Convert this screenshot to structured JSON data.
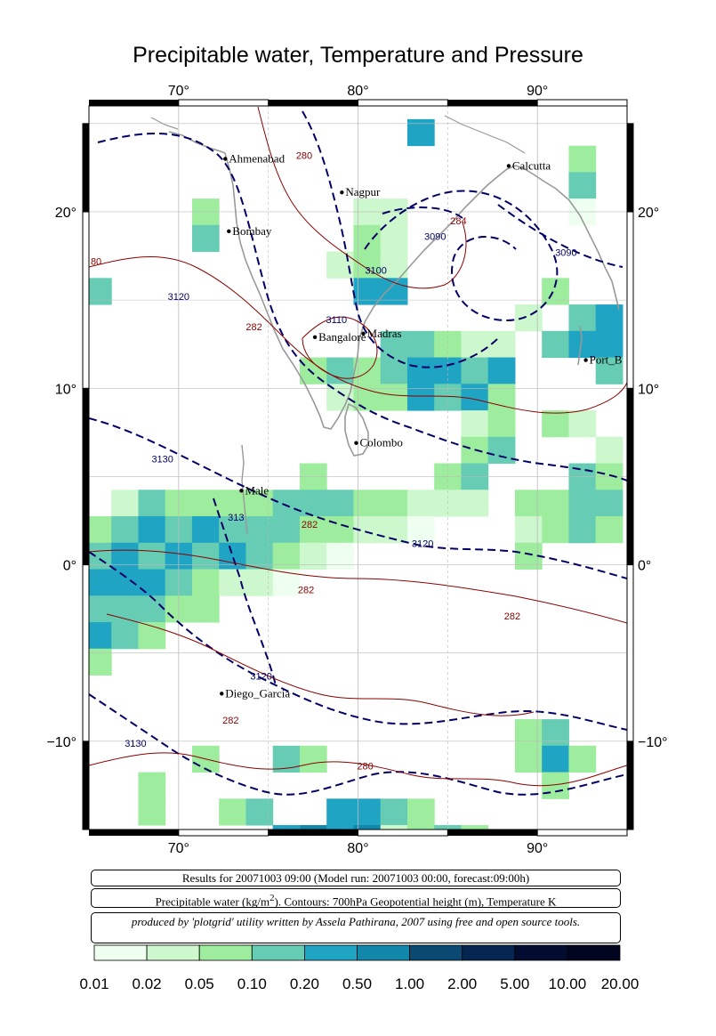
{
  "title": "Precipitable water, Temperature and Pressure",
  "map": {
    "lon_range": [
      65,
      95
    ],
    "lat_range": [
      -15,
      26
    ],
    "lon_ticks": [
      {
        "value": 70,
        "label": "70°"
      },
      {
        "value": 80,
        "label": "80°"
      },
      {
        "value": 90,
        "label": "90°"
      }
    ],
    "lat_ticks": [
      {
        "value": 20,
        "label": "20°"
      },
      {
        "value": 10,
        "label": "10°"
      },
      {
        "value": 0,
        "label": "0°"
      },
      {
        "value": -10,
        "label": "−10°"
      }
    ],
    "cities": [
      {
        "name": "Ahmenabad",
        "lon": 72.6,
        "lat": 23.0
      },
      {
        "name": "Nagpur",
        "lon": 79.1,
        "lat": 21.1
      },
      {
        "name": "Calcutta",
        "lon": 88.4,
        "lat": 22.6
      },
      {
        "name": "Bombay",
        "lon": 72.8,
        "lat": 18.9
      },
      {
        "name": "Bangalore",
        "lon": 77.6,
        "lat": 12.9
      },
      {
        "name": "Madras",
        "lon": 80.3,
        "lat": 13.1
      },
      {
        "name": "Port_B",
        "lon": 92.7,
        "lat": 11.6
      },
      {
        "name": "Colombo",
        "lon": 79.9,
        "lat": 6.9
      },
      {
        "name": "Male",
        "lon": 73.5,
        "lat": 4.2
      },
      {
        "name": "Diego_Garcia",
        "lon": 72.4,
        "lat": -7.3
      }
    ],
    "contour_labels": [
      {
        "text": "280",
        "lon": 77.0,
        "lat": 23.0,
        "color": "#8b0000"
      },
      {
        "text": "284",
        "lon": 85.6,
        "lat": 19.3,
        "color": "#8b0000"
      },
      {
        "text": "3090",
        "lon": 84.3,
        "lat": 18.4,
        "color": "#000066"
      },
      {
        "text": "3090",
        "lon": 91.6,
        "lat": 17.5,
        "color": "#000066"
      },
      {
        "text": "3100",
        "lon": 81.0,
        "lat": 16.5,
        "color": "#000066"
      },
      {
        "text": "3110",
        "lon": 78.8,
        "lat": 13.7,
        "color": "#000066"
      },
      {
        "text": "3120",
        "lon": 70.0,
        "lat": 15.0,
        "color": "#000066"
      },
      {
        "text": "282",
        "lon": 74.2,
        "lat": 13.3,
        "color": "#8b0000"
      },
      {
        "text": "80",
        "lon": 65.4,
        "lat": 17.0,
        "color": "#8b0000"
      },
      {
        "text": "3130",
        "lon": 69.1,
        "lat": 5.8,
        "color": "#000066"
      },
      {
        "text": "313",
        "lon": 73.2,
        "lat": 2.5,
        "color": "#000066"
      },
      {
        "text": "282",
        "lon": 77.3,
        "lat": 2.1,
        "color": "#8b0000"
      },
      {
        "text": "3120",
        "lon": 83.6,
        "lat": 1.0,
        "color": "#000066"
      },
      {
        "text": "282",
        "lon": 77.1,
        "lat": -1.6,
        "color": "#8b0000"
      },
      {
        "text": "282",
        "lon": 88.6,
        "lat": -3.1,
        "color": "#8b0000"
      },
      {
        "text": "3120",
        "lon": 74.6,
        "lat": -6.5,
        "color": "#000066"
      },
      {
        "text": "282",
        "lon": 72.9,
        "lat": -9.0,
        "color": "#8b0000"
      },
      {
        "text": "3130",
        "lon": 67.6,
        "lat": -10.3,
        "color": "#000066"
      },
      {
        "text": "280",
        "lon": 80.4,
        "lat": -11.6,
        "color": "#8b0000"
      }
    ]
  },
  "info": {
    "results": "Results for 20071003 09:00 (Model run: 20071003 00:00, forecast:09:00h)",
    "contours_prefix": "Precipitable water (kg/m",
    "contours_sup": "2",
    "contours_suffix": ").  Contours: 700hPa Geopotential height (m), Temperature K",
    "credits": "produced by 'plotgrid' utility written by Assela Pathirana, 2007 using free and open source tools."
  },
  "legend": {
    "labels": [
      "0.01",
      "0.02",
      "0.05",
      "0.10",
      "0.20",
      "0.50",
      "1.00",
      "2.00",
      "5.00",
      "10.00",
      "20.00"
    ],
    "colors": [
      "#eefff0",
      "#cdf7cd",
      "#9eed9e",
      "#66ccb3",
      "#20a4c4",
      "#1187aa",
      "#0a4a72",
      "#052650",
      "#020c30",
      "#01041e",
      "#00000a"
    ]
  },
  "chart_data": {
    "type": "heatmap",
    "title": "Precipitable water, Temperature and Pressure",
    "xlabel": "",
    "ylabel": "",
    "xlim": [
      65,
      95
    ],
    "ylim": [
      -15,
      26
    ],
    "grid_step_deg": 1.5,
    "cells": [
      {
        "lon": 83.5,
        "lat": 24.5,
        "level": 4
      },
      {
        "lon": 92.5,
        "lat": 23.0,
        "level": 2
      },
      {
        "lon": 92.5,
        "lat": 21.5,
        "level": 3
      },
      {
        "lon": 92.5,
        "lat": 20.0,
        "level": 0
      },
      {
        "lon": 71.5,
        "lat": 20.0,
        "level": 2
      },
      {
        "lon": 71.5,
        "lat": 18.5,
        "level": 3
      },
      {
        "lon": 80.5,
        "lat": 20.0,
        "level": 1
      },
      {
        "lon": 82.0,
        "lat": 20.0,
        "level": 1
      },
      {
        "lon": 80.5,
        "lat": 18.5,
        "level": 2
      },
      {
        "lon": 82.0,
        "lat": 18.5,
        "level": 1
      },
      {
        "lon": 79.0,
        "lat": 17.0,
        "level": 1
      },
      {
        "lon": 80.5,
        "lat": 17.0,
        "level": 2
      },
      {
        "lon": 82.0,
        "lat": 17.0,
        "level": 1
      },
      {
        "lon": 80.5,
        "lat": 15.5,
        "level": 4
      },
      {
        "lon": 82.0,
        "lat": 15.5,
        "level": 4
      },
      {
        "lon": 65.5,
        "lat": 15.5,
        "level": 3
      },
      {
        "lon": 89.5,
        "lat": 14.0,
        "level": 1
      },
      {
        "lon": 91.0,
        "lat": 15.5,
        "level": 2
      },
      {
        "lon": 92.5,
        "lat": 14.0,
        "level": 3
      },
      {
        "lon": 94.0,
        "lat": 14.0,
        "level": 4
      },
      {
        "lon": 91.0,
        "lat": 12.5,
        "level": 3
      },
      {
        "lon": 92.5,
        "lat": 12.5,
        "level": 4
      },
      {
        "lon": 94.0,
        "lat": 12.5,
        "level": 4
      },
      {
        "lon": 94.0,
        "lat": 11.0,
        "level": 3
      },
      {
        "lon": 82.0,
        "lat": 12.5,
        "level": 3
      },
      {
        "lon": 83.5,
        "lat": 12.5,
        "level": 3
      },
      {
        "lon": 85.0,
        "lat": 12.5,
        "level": 2
      },
      {
        "lon": 86.5,
        "lat": 12.5,
        "level": 1
      },
      {
        "lon": 88.0,
        "lat": 12.5,
        "level": 1
      },
      {
        "lon": 77.5,
        "lat": 11.0,
        "level": 2
      },
      {
        "lon": 79.0,
        "lat": 11.0,
        "level": 3
      },
      {
        "lon": 80.5,
        "lat": 11.0,
        "level": 2
      },
      {
        "lon": 82.0,
        "lat": 11.0,
        "level": 3
      },
      {
        "lon": 83.5,
        "lat": 11.0,
        "level": 4
      },
      {
        "lon": 85.0,
        "lat": 11.0,
        "level": 4
      },
      {
        "lon": 86.5,
        "lat": 11.0,
        "level": 3
      },
      {
        "lon": 88.0,
        "lat": 11.0,
        "level": 4
      },
      {
        "lon": 79.0,
        "lat": 9.5,
        "level": 1
      },
      {
        "lon": 80.5,
        "lat": 9.5,
        "level": 2
      },
      {
        "lon": 82.0,
        "lat": 9.5,
        "level": 2
      },
      {
        "lon": 83.5,
        "lat": 9.5,
        "level": 4
      },
      {
        "lon": 85.0,
        "lat": 9.5,
        "level": 3
      },
      {
        "lon": 86.5,
        "lat": 9.5,
        "level": 4
      },
      {
        "lon": 88.0,
        "lat": 9.5,
        "level": 2
      },
      {
        "lon": 86.5,
        "lat": 8.0,
        "level": 1
      },
      {
        "lon": 88.0,
        "lat": 8.0,
        "level": 2
      },
      {
        "lon": 91.0,
        "lat": 8.0,
        "level": 2
      },
      {
        "lon": 92.5,
        "lat": 8.0,
        "level": 1
      },
      {
        "lon": 86.5,
        "lat": 6.5,
        "level": 2
      },
      {
        "lon": 88.0,
        "lat": 6.5,
        "level": 3
      },
      {
        "lon": 94.0,
        "lat": 6.5,
        "level": 1
      },
      {
        "lon": 77.5,
        "lat": 5.0,
        "level": 2
      },
      {
        "lon": 85.0,
        "lat": 5.0,
        "level": 2
      },
      {
        "lon": 86.5,
        "lat": 5.0,
        "level": 3
      },
      {
        "lon": 92.5,
        "lat": 5.0,
        "level": 3
      },
      {
        "lon": 94.0,
        "lat": 5.0,
        "level": 2
      },
      {
        "lon": 67.0,
        "lat": 3.5,
        "level": 1
      },
      {
        "lon": 68.5,
        "lat": 3.5,
        "level": 3
      },
      {
        "lon": 70.0,
        "lat": 3.5,
        "level": 2
      },
      {
        "lon": 71.5,
        "lat": 3.5,
        "level": 2
      },
      {
        "lon": 73.0,
        "lat": 3.5,
        "level": 2
      },
      {
        "lon": 74.5,
        "lat": 3.5,
        "level": 2
      },
      {
        "lon": 76.0,
        "lat": 3.5,
        "level": 3
      },
      {
        "lon": 77.5,
        "lat": 3.5,
        "level": 3
      },
      {
        "lon": 79.0,
        "lat": 3.5,
        "level": 3
      },
      {
        "lon": 80.5,
        "lat": 3.5,
        "level": 2
      },
      {
        "lon": 82.0,
        "lat": 3.5,
        "level": 2
      },
      {
        "lon": 83.5,
        "lat": 3.5,
        "level": 1
      },
      {
        "lon": 85.0,
        "lat": 3.5,
        "level": 1
      },
      {
        "lon": 86.5,
        "lat": 3.5,
        "level": 1
      },
      {
        "lon": 89.5,
        "lat": 3.5,
        "level": 2
      },
      {
        "lon": 91.0,
        "lat": 3.5,
        "level": 2
      },
      {
        "lon": 92.5,
        "lat": 3.5,
        "level": 3
      },
      {
        "lon": 94.0,
        "lat": 3.5,
        "level": 3
      },
      {
        "lon": 65.5,
        "lat": 2.0,
        "level": 2
      },
      {
        "lon": 67.0,
        "lat": 2.0,
        "level": 3
      },
      {
        "lon": 68.5,
        "lat": 2.0,
        "level": 4
      },
      {
        "lon": 70.0,
        "lat": 2.0,
        "level": 3
      },
      {
        "lon": 71.5,
        "lat": 2.0,
        "level": 4
      },
      {
        "lon": 73.0,
        "lat": 2.0,
        "level": 3
      },
      {
        "lon": 74.5,
        "lat": 2.0,
        "level": 3
      },
      {
        "lon": 76.0,
        "lat": 2.0,
        "level": 3
      },
      {
        "lon": 77.5,
        "lat": 2.0,
        "level": 2
      },
      {
        "lon": 79.0,
        "lat": 2.0,
        "level": 2
      },
      {
        "lon": 80.5,
        "lat": 2.0,
        "level": 1
      },
      {
        "lon": 82.0,
        "lat": 2.0,
        "level": 1
      },
      {
        "lon": 83.5,
        "lat": 2.0,
        "level": 0
      },
      {
        "lon": 89.5,
        "lat": 2.0,
        "level": 1
      },
      {
        "lon": 91.0,
        "lat": 2.0,
        "level": 2
      },
      {
        "lon": 92.5,
        "lat": 2.0,
        "level": 3
      },
      {
        "lon": 94.0,
        "lat": 2.0,
        "level": 2
      },
      {
        "lon": 65.5,
        "lat": 0.5,
        "level": 3
      },
      {
        "lon": 67.0,
        "lat": 0.5,
        "level": 4
      },
      {
        "lon": 68.5,
        "lat": 0.5,
        "level": 3
      },
      {
        "lon": 70.0,
        "lat": 0.5,
        "level": 4
      },
      {
        "lon": 71.5,
        "lat": 0.5,
        "level": 3
      },
      {
        "lon": 73.0,
        "lat": 0.5,
        "level": 4
      },
      {
        "lon": 74.5,
        "lat": 0.5,
        "level": 3
      },
      {
        "lon": 76.0,
        "lat": 0.5,
        "level": 2
      },
      {
        "lon": 77.5,
        "lat": 0.5,
        "level": 1
      },
      {
        "lon": 79.0,
        "lat": 0.5,
        "level": 0
      },
      {
        "lon": 89.5,
        "lat": 0.5,
        "level": 2
      },
      {
        "lon": 65.5,
        "lat": -1.0,
        "level": 4
      },
      {
        "lon": 67.0,
        "lat": -1.0,
        "level": 4
      },
      {
        "lon": 68.5,
        "lat": -1.0,
        "level": 4
      },
      {
        "lon": 70.0,
        "lat": -1.0,
        "level": 3
      },
      {
        "lon": 71.5,
        "lat": -1.0,
        "level": 2
      },
      {
        "lon": 73.0,
        "lat": -1.0,
        "level": 1
      },
      {
        "lon": 74.5,
        "lat": -1.0,
        "level": 1
      },
      {
        "lon": 76.0,
        "lat": -1.0,
        "level": 0
      },
      {
        "lon": 65.5,
        "lat": -2.5,
        "level": 3
      },
      {
        "lon": 67.0,
        "lat": -2.5,
        "level": 3
      },
      {
        "lon": 68.5,
        "lat": -2.5,
        "level": 3
      },
      {
        "lon": 70.0,
        "lat": -2.5,
        "level": 2
      },
      {
        "lon": 71.5,
        "lat": -2.5,
        "level": 2
      },
      {
        "lon": 65.5,
        "lat": -4.0,
        "level": 4
      },
      {
        "lon": 67.0,
        "lat": -4.0,
        "level": 3
      },
      {
        "lon": 68.5,
        "lat": -4.0,
        "level": 2
      },
      {
        "lon": 65.5,
        "lat": -5.5,
        "level": 2
      },
      {
        "lon": 71.5,
        "lat": -11.0,
        "level": 2
      },
      {
        "lon": 76.0,
        "lat": -11.0,
        "level": 3
      },
      {
        "lon": 77.5,
        "lat": -11.0,
        "level": 2
      },
      {
        "lon": 89.5,
        "lat": -9.5,
        "level": 2
      },
      {
        "lon": 91.0,
        "lat": -9.5,
        "level": 3
      },
      {
        "lon": 89.5,
        "lat": -11.0,
        "level": 2
      },
      {
        "lon": 91.0,
        "lat": -11.0,
        "level": 4
      },
      {
        "lon": 92.5,
        "lat": -11.0,
        "level": 2
      },
      {
        "lon": 91.0,
        "lat": -12.5,
        "level": 2
      },
      {
        "lon": 68.5,
        "lat": -12.5,
        "level": 2
      },
      {
        "lon": 68.5,
        "lat": -14.0,
        "level": 2
      },
      {
        "lon": 73.0,
        "lat": -14.0,
        "level": 2
      },
      {
        "lon": 74.5,
        "lat": -14.0,
        "level": 3
      },
      {
        "lon": 80.5,
        "lat": -14.0,
        "level": 4
      },
      {
        "lon": 82.0,
        "lat": -14.0,
        "level": 3
      },
      {
        "lon": 83.5,
        "lat": -14.0,
        "level": 2
      },
      {
        "lon": 79.0,
        "lat": -14.0,
        "level": 4
      },
      {
        "lon": 77.5,
        "lat": -15.5,
        "level": 5
      },
      {
        "lon": 79.0,
        "lat": -15.5,
        "level": 4
      },
      {
        "lon": 80.5,
        "lat": -15.5,
        "level": 5
      },
      {
        "lon": 82.0,
        "lat": -15.5,
        "level": 1
      },
      {
        "lon": 83.5,
        "lat": -15.5,
        "level": 2
      },
      {
        "lon": 85.0,
        "lat": -15.5,
        "level": 3
      },
      {
        "lon": 76.0,
        "lat": -15.5,
        "level": 4
      },
      {
        "lon": 86.5,
        "lat": -15.5,
        "level": 2
      }
    ]
  }
}
